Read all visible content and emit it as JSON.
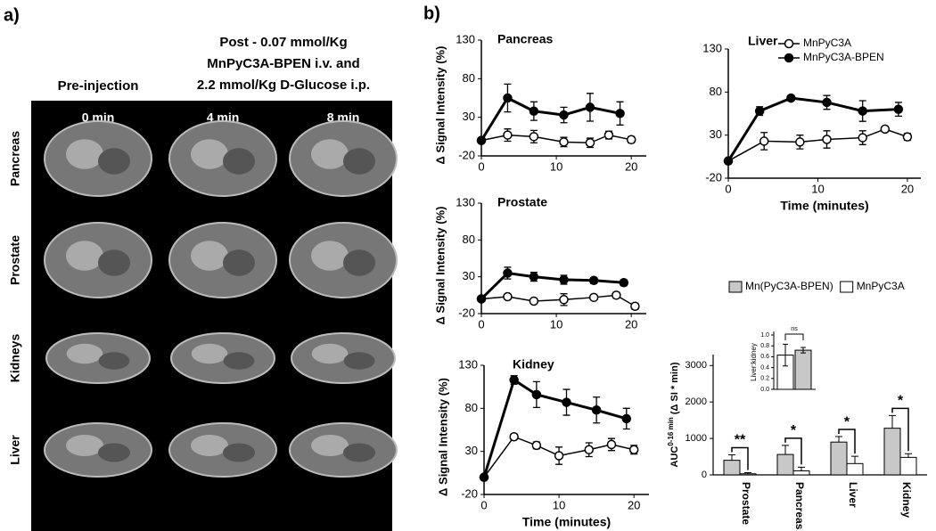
{
  "panel_a": {
    "label": "a)",
    "pre_header": "Pre-injection",
    "post_header": [
      "Post - 0.07 mmol/Kg",
      "MnPyC3A-BPEN i.v. and",
      "2.2 mmol/Kg D-Glucose i.p."
    ],
    "times": [
      "0 min",
      "4 min",
      "8 min"
    ],
    "rows": [
      "Pancreas",
      "Prostate",
      "Kidneys",
      "Liver"
    ]
  },
  "panel_b_label": "b)",
  "chart_data": [
    {
      "type": "line",
      "title": "Pancreas",
      "ylabel": "Δ Signal Intensity (%)",
      "xlim": [
        0,
        22
      ],
      "ylim": [
        -20,
        130
      ],
      "xticks": [
        0,
        10,
        20
      ],
      "yticks": [
        -20,
        30,
        80,
        130
      ],
      "series": [
        {
          "color": "#ffffff",
          "x": [
            0,
            3.5,
            7,
            11,
            14.5,
            17,
            20
          ],
          "values": [
            0,
            7,
            5,
            -2,
            -3,
            7,
            1
          ],
          "errors": [
            null,
            8,
            8,
            6,
            6,
            5,
            4
          ]
        },
        {
          "color": "#000000",
          "x": [
            0,
            3.5,
            7,
            11,
            14.5,
            18.5
          ],
          "values": [
            0,
            55,
            38,
            33,
            43,
            35
          ],
          "errors": [
            null,
            18,
            12,
            10,
            18,
            15
          ]
        }
      ]
    },
    {
      "type": "line",
      "title": "Liver",
      "xlabel": "Time (minutes)",
      "legend": "top-right",
      "xlim": [
        0,
        21.5
      ],
      "ylim": [
        -20,
        130
      ],
      "xticks": [
        0,
        10,
        20
      ],
      "yticks": [
        -20,
        30,
        80,
        130
      ],
      "series": [
        {
          "name": "MnPyC3A",
          "color": "#ffffff",
          "x": [
            0,
            4,
            8,
            11,
            15,
            17.5,
            20
          ],
          "values": [
            0,
            23,
            22,
            25,
            27,
            37,
            28
          ],
          "errors": [
            null,
            10,
            8,
            10,
            8,
            3,
            4
          ]
        },
        {
          "name": "MnPyC3A-BPEN",
          "color": "#000000",
          "x": [
            0,
            3.5,
            7,
            11,
            15,
            19
          ],
          "values": [
            0,
            58,
            73,
            68,
            58,
            60
          ],
          "errors": [
            null,
            5,
            3,
            8,
            12,
            8
          ]
        }
      ]
    },
    {
      "type": "line",
      "title": "Prostate",
      "ylabel": "Δ Signal Intensity (%)",
      "xlim": [
        0,
        22
      ],
      "ylim": [
        -20,
        130
      ],
      "xticks": [
        0,
        10,
        20
      ],
      "yticks": [
        -20,
        30,
        80,
        130
      ],
      "series": [
        {
          "color": "#ffffff",
          "x": [
            0,
            3.5,
            7,
            11,
            15,
            18,
            20.5
          ],
          "values": [
            0,
            3,
            -3,
            -1,
            2,
            5,
            -10
          ],
          "errors": [
            null,
            3,
            3,
            8,
            3,
            4,
            4
          ]
        },
        {
          "color": "#000000",
          "x": [
            0,
            3.5,
            7,
            11,
            15,
            19
          ],
          "values": [
            0,
            35,
            30,
            26,
            25,
            22
          ],
          "errors": [
            null,
            8,
            6,
            6,
            4,
            4
          ]
        }
      ]
    },
    {
      "type": "line",
      "title": "Kidney",
      "ylabel": "Δ Signal Intensity (%)",
      "xlabel": "Time (minutes)",
      "xlim": [
        0,
        22
      ],
      "ylim": [
        -20,
        130
      ],
      "xticks": [
        0,
        10,
        20
      ],
      "yticks": [
        -20,
        30,
        80,
        130
      ],
      "series": [
        {
          "color": "#ffffff",
          "x": [
            0,
            4,
            7,
            10,
            14,
            17,
            20
          ],
          "values": [
            0,
            47,
            37,
            25,
            32,
            38,
            32
          ],
          "errors": [
            null,
            3,
            4,
            10,
            8,
            7,
            5
          ]
        },
        {
          "color": "#000000",
          "x": [
            0,
            4,
            7,
            11,
            15,
            19
          ],
          "values": [
            0,
            113,
            96,
            87,
            78,
            68
          ],
          "errors": [
            null,
            5,
            15,
            15,
            15,
            12
          ]
        }
      ]
    },
    {
      "type": "bar",
      "ylabel": [
        "AUC",
        "0-16 min",
        " (Δ SI * min)"
      ],
      "legend": "top",
      "categories": [
        "Prostate",
        "Pancreas",
        "Liver",
        "Kidney"
      ],
      "ylim": [
        0,
        3300
      ],
      "yticks": [
        0,
        1000,
        2000,
        3000
      ],
      "series": [
        {
          "name": "Mn(PyC3A-BPEN)",
          "color": "#c8c8c8",
          "values": [
            400,
            560,
            900,
            1280
          ],
          "errors": [
            150,
            250,
            150,
            350
          ]
        },
        {
          "name": "MnPyC3A",
          "color": "#ffffff",
          "values": [
            30,
            110,
            310,
            480
          ],
          "errors": [
            30,
            100,
            200,
            100
          ]
        }
      ],
      "significance": [
        "**",
        "*",
        "*",
        "*"
      ],
      "inset": {
        "ylabel": "Liver:kidney",
        "ylim": [
          0,
          1.0
        ],
        "yticks": [
          {
            "value": 0,
            "label": "0.0"
          },
          0.2,
          0.4,
          0.6,
          0.8,
          {
            "value": 1.0,
            "label": "1.0"
          }
        ],
        "series": [
          {
            "color": "#ffffff",
            "values": [
              0.63
            ],
            "errors": [
              0.2
            ]
          },
          {
            "color": "#c8c8c8",
            "values": [
              0.72
            ],
            "errors": [
              0.05
            ]
          }
        ],
        "annotation": "ns"
      }
    }
  ]
}
